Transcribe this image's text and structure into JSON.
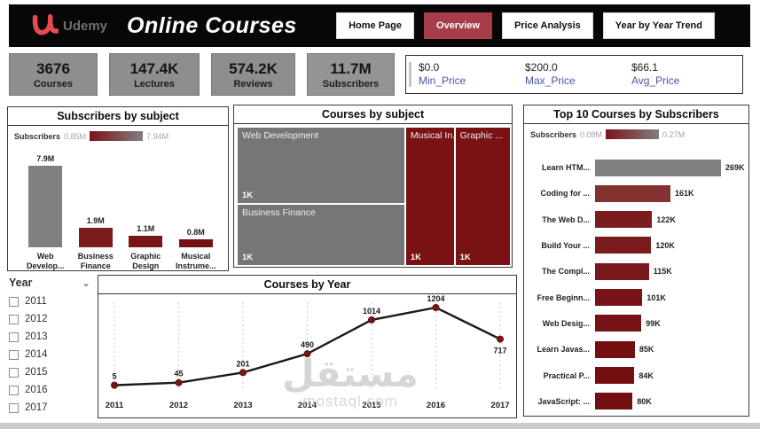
{
  "header": {
    "brand": "Udemy",
    "title": "Online Courses",
    "nav": [
      {
        "label": "Home Page",
        "active": false
      },
      {
        "label": "Overview",
        "active": true
      },
      {
        "label": "Price Analysis",
        "active": false
      },
      {
        "label": "Year by Year Trend",
        "active": false
      }
    ]
  },
  "kpis": [
    {
      "value": "3676",
      "label": "Courses"
    },
    {
      "value": "147.4K",
      "label": "Lectures"
    },
    {
      "value": "574.2K",
      "label": "Reviews"
    },
    {
      "value": "11.7M",
      "label": "Subscribers"
    }
  ],
  "price_summary": [
    {
      "value": "$0.0",
      "label": "Min_Price"
    },
    {
      "value": "$200.0",
      "label": "Max_Price"
    },
    {
      "value": "$66.1",
      "label": "Avg_Price"
    }
  ],
  "year_slicer": {
    "title": "Year",
    "options": [
      "2011",
      "2012",
      "2013",
      "2014",
      "2015",
      "2016",
      "2017"
    ],
    "all_unchecked": true
  },
  "watermark": {
    "arabic": "مستقل",
    "domain": "mostaql.com"
  },
  "colors": {
    "accent_red": "#A63D48",
    "maroon": "#7B1315",
    "bar_gray": "#7F7F7F",
    "header_black": "#070707",
    "price_label_blue": "#4A54A8"
  },
  "chart_data": [
    {
      "id": "subscribers-by-subject",
      "type": "bar",
      "title": "Subscribers by subject",
      "legend": {
        "label": "Subscribers",
        "min_label": "0.85M",
        "max_label": "7.94M",
        "gradient": [
          "#7B1416",
          "#7F7F7F"
        ]
      },
      "categories": [
        "Web Develop...",
        "Business Finance",
        "Graphic Design",
        "Musical Instrume..."
      ],
      "category_lines": [
        [
          "Web",
          "Develop..."
        ],
        [
          "Business",
          "Finance"
        ],
        [
          "Graphic",
          "Design"
        ],
        [
          "Musical",
          "Instrume..."
        ]
      ],
      "values": [
        7.9,
        1.9,
        1.1,
        0.8
      ],
      "unit": "M",
      "value_labels": [
        "7.9M",
        "1.9M",
        "1.1M",
        "0.8M"
      ],
      "bar_colors": [
        "#7F7F7F",
        "#7B1B1D",
        "#791417",
        "#751113"
      ],
      "ylim": [
        0,
        7.94
      ]
    },
    {
      "id": "courses-by-subject",
      "type": "treemap",
      "title": "Courses by subject",
      "tiles": [
        {
          "label": "Web Development",
          "value_label": "1K",
          "color": "#767676",
          "slot": "left-top"
        },
        {
          "label": "Business Finance",
          "value_label": "1K",
          "color": "#767676",
          "slot": "left-bottom"
        },
        {
          "label": "Musical In...",
          "value_label": "1K",
          "color": "#7A1113",
          "slot": "mid"
        },
        {
          "label": "Graphic ...",
          "value_label": "1K",
          "color": "#7A1113",
          "slot": "right"
        }
      ],
      "layout": {
        "left_w_frac": 0.625,
        "mid_w_frac": 0.175,
        "right_w_frac": 0.2,
        "left_top_h_frac": 0.55
      }
    },
    {
      "id": "top-10-courses-by-subscribers",
      "type": "bar_horizontal",
      "title": "Top 10 Courses by Subscribers",
      "legend": {
        "label": "Subscribers",
        "min_label": "0.08M",
        "max_label": "0.27M",
        "gradient": [
          "#7B1416",
          "#7F7F7F"
        ]
      },
      "categories": [
        "Learn HTM...",
        "Coding for ...",
        "The Web D...",
        "Build Your ...",
        "The Compl...",
        "Free Beginn...",
        "Web Desig...",
        "Learn Javas...",
        "Practical P...",
        "JavaScript: ..."
      ],
      "values": [
        269,
        161,
        122,
        120,
        115,
        101,
        99,
        85,
        84,
        80
      ],
      "unit": "K",
      "value_labels": [
        "269K",
        "161K",
        "122K",
        "120K",
        "115K",
        "101K",
        "99K",
        "85K",
        "84K",
        "80K"
      ],
      "bar_colors": [
        "#7F7F7F",
        "#84322F",
        "#7B1D1F",
        "#7A1B1D",
        "#7A191B",
        "#771417",
        "#771316",
        "#740F12",
        "#740F12",
        "#730E11"
      ],
      "xlim": [
        0,
        269
      ]
    },
    {
      "id": "courses-by-year",
      "type": "line",
      "title": "Courses by Year",
      "x": [
        "2011",
        "2012",
        "2013",
        "2014",
        "2015",
        "2016",
        "2017"
      ],
      "values": [
        5,
        45,
        201,
        490,
        1014,
        1204,
        717
      ],
      "line_color": "#1a1a1a",
      "marker_color": "#7B1416",
      "grid": "vertical-dashed",
      "ylim": [
        0,
        1250
      ],
      "legend_position": "none",
      "last_label_below": true
    }
  ]
}
